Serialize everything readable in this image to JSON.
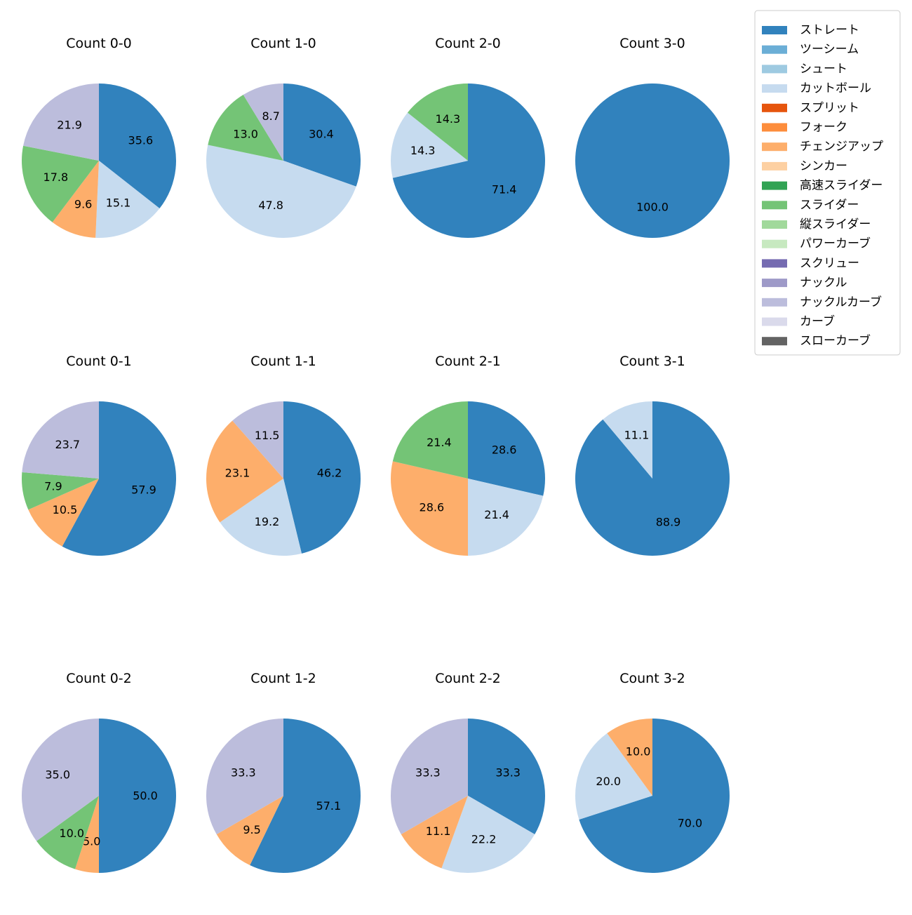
{
  "chart_data": {
    "type": "pie",
    "start_angle_deg": 90,
    "direction": "clockwise",
    "label_precision": 1,
    "label_threshold_pct": 5,
    "legend": {
      "placement": "top-right",
      "entries": [
        {
          "name": "ストレート",
          "color": "#3182bd"
        },
        {
          "name": "ツーシーム",
          "color": "#6baed6"
        },
        {
          "name": "シュート",
          "color": "#9ecae1"
        },
        {
          "name": "カットボール",
          "color": "#c6dbef"
        },
        {
          "name": "スプリット",
          "color": "#e6550d"
        },
        {
          "name": "フォーク",
          "color": "#fd8d3c"
        },
        {
          "name": "チェンジアップ",
          "color": "#fdae6b"
        },
        {
          "name": "シンカー",
          "color": "#fdd0a2"
        },
        {
          "name": "高速スライダー",
          "color": "#31a354"
        },
        {
          "name": "スライダー",
          "color": "#74c476"
        },
        {
          "name": "縦スライダー",
          "color": "#a1d99b"
        },
        {
          "name": "パワーカーブ",
          "color": "#c7e9c0"
        },
        {
          "name": "スクリュー",
          "color": "#756bb1"
        },
        {
          "name": "ナックル",
          "color": "#9e9ac8"
        },
        {
          "name": "ナックルカーブ",
          "color": "#bcbddc"
        },
        {
          "name": "カーブ",
          "color": "#dadaeb"
        },
        {
          "name": "スローカーブ",
          "color": "#636363"
        }
      ]
    },
    "charts": [
      {
        "title": "Count 0-0",
        "slices": [
          {
            "pitch": "ストレート",
            "value": 35.6
          },
          {
            "pitch": "カットボール",
            "value": 15.1
          },
          {
            "pitch": "チェンジアップ",
            "value": 9.6
          },
          {
            "pitch": "スライダー",
            "value": 17.8
          },
          {
            "pitch": "ナックルカーブ",
            "value": 21.9
          }
        ]
      },
      {
        "title": "Count 1-0",
        "slices": [
          {
            "pitch": "ストレート",
            "value": 30.4
          },
          {
            "pitch": "カットボール",
            "value": 47.8
          },
          {
            "pitch": "スライダー",
            "value": 13.0
          },
          {
            "pitch": "ナックルカーブ",
            "value": 8.7
          }
        ]
      },
      {
        "title": "Count 2-0",
        "slices": [
          {
            "pitch": "ストレート",
            "value": 71.4
          },
          {
            "pitch": "カットボール",
            "value": 14.3
          },
          {
            "pitch": "スライダー",
            "value": 14.3
          }
        ]
      },
      {
        "title": "Count 3-0",
        "slices": [
          {
            "pitch": "ストレート",
            "value": 100.0
          }
        ]
      },
      {
        "title": "Count 0-1",
        "slices": [
          {
            "pitch": "ストレート",
            "value": 57.9
          },
          {
            "pitch": "チェンジアップ",
            "value": 10.5
          },
          {
            "pitch": "スライダー",
            "value": 7.9
          },
          {
            "pitch": "ナックルカーブ",
            "value": 23.7
          }
        ]
      },
      {
        "title": "Count 1-1",
        "slices": [
          {
            "pitch": "ストレート",
            "value": 46.2
          },
          {
            "pitch": "カットボール",
            "value": 19.2
          },
          {
            "pitch": "チェンジアップ",
            "value": 23.1
          },
          {
            "pitch": "ナックルカーブ",
            "value": 11.5
          }
        ]
      },
      {
        "title": "Count 2-1",
        "slices": [
          {
            "pitch": "ストレート",
            "value": 28.6
          },
          {
            "pitch": "カットボール",
            "value": 21.4
          },
          {
            "pitch": "チェンジアップ",
            "value": 28.6
          },
          {
            "pitch": "スライダー",
            "value": 21.4
          }
        ]
      },
      {
        "title": "Count 3-1",
        "slices": [
          {
            "pitch": "ストレート",
            "value": 88.9
          },
          {
            "pitch": "カットボール",
            "value": 11.1
          }
        ]
      },
      {
        "title": "Count 0-2",
        "slices": [
          {
            "pitch": "ストレート",
            "value": 50.0
          },
          {
            "pitch": "チェンジアップ",
            "value": 5.0
          },
          {
            "pitch": "スライダー",
            "value": 10.0
          },
          {
            "pitch": "ナックルカーブ",
            "value": 35.0
          }
        ]
      },
      {
        "title": "Count 1-2",
        "slices": [
          {
            "pitch": "ストレート",
            "value": 57.1
          },
          {
            "pitch": "チェンジアップ",
            "value": 9.5
          },
          {
            "pitch": "ナックルカーブ",
            "value": 33.3
          }
        ]
      },
      {
        "title": "Count 2-2",
        "slices": [
          {
            "pitch": "ストレート",
            "value": 33.3
          },
          {
            "pitch": "カットボール",
            "value": 22.2
          },
          {
            "pitch": "チェンジアップ",
            "value": 11.1
          },
          {
            "pitch": "ナックルカーブ",
            "value": 33.3
          }
        ]
      },
      {
        "title": "Count 3-2",
        "slices": [
          {
            "pitch": "ストレート",
            "value": 70.0
          },
          {
            "pitch": "カットボール",
            "value": 20.0
          },
          {
            "pitch": "チェンジアップ",
            "value": 10.0
          }
        ]
      }
    ]
  }
}
